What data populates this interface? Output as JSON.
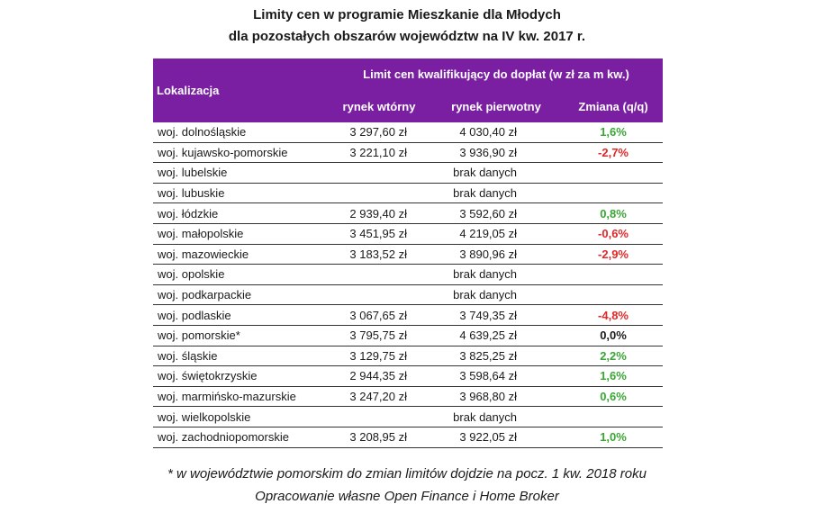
{
  "title": {
    "line1": "Limity cen w programie Mieszkanie dla Młodych",
    "line2": "dla pozostałych obszarów województw na IV kw. 2017 r."
  },
  "table": {
    "header": {
      "location": "Lokalizacja",
      "group": "Limit cen kwalifikujący do dopłat (w zł za m kw.)",
      "secondary": "rynek wtórny",
      "primary": "rynek pierwotny",
      "change": "Zmiana (q/q)"
    },
    "rows": [
      {
        "region": "woj. dolnośląskie",
        "secondary": "3 297,60 zł",
        "primary": "4 030,40 zł",
        "change": "1,6%",
        "trend": "pos"
      },
      {
        "region": "woj. kujawsko-pomorskie",
        "secondary": "3 221,10 zł",
        "primary": "3 936,90 zł",
        "change": "-2,7%",
        "trend": "neg"
      },
      {
        "region": "woj. lubelskie",
        "nodata": "brak danych"
      },
      {
        "region": "woj. lubuskie",
        "nodata": "brak danych"
      },
      {
        "region": "woj. łódzkie",
        "secondary": "2 939,40 zł",
        "primary": "3 592,60 zł",
        "change": "0,8%",
        "trend": "pos"
      },
      {
        "region": "woj. małopolskie",
        "secondary": "3 451,95 zł",
        "primary": "4 219,05 zł",
        "change": "-0,6%",
        "trend": "neg"
      },
      {
        "region": "woj. mazowieckie",
        "secondary": "3 183,52 zł",
        "primary": "3 890,96 zł",
        "change": "-2,9%",
        "trend": "neg"
      },
      {
        "region": "woj. opolskie",
        "nodata": "brak danych"
      },
      {
        "region": "woj. podkarpackie",
        "nodata": "brak danych"
      },
      {
        "region": "woj. podlaskie",
        "secondary": "3 067,65 zł",
        "primary": "3 749,35 zł",
        "change": "-4,8%",
        "trend": "neg"
      },
      {
        "region": "woj. pomorskie*",
        "secondary": "3 795,75 zł",
        "primary": "4 639,25 zł",
        "change": "0,0%",
        "trend": "zero"
      },
      {
        "region": "woj. śląskie",
        "secondary": "3 129,75 zł",
        "primary": "3 825,25 zł",
        "change": "2,2%",
        "trend": "pos"
      },
      {
        "region": "woj. świętokrzyskie",
        "secondary": "2 944,35 zł",
        "primary": "3 598,64 zł",
        "change": "1,6%",
        "trend": "pos"
      },
      {
        "region": "woj. marmińsko-mazurskie",
        "secondary": "3 247,20 zł",
        "primary": "3 968,80 zł",
        "change": "0,6%",
        "trend": "pos"
      },
      {
        "region": "woj. wielkopolskie",
        "nodata": "brak danych"
      },
      {
        "region": "woj. zachodniopomorskie",
        "secondary": "3 208,95 zł",
        "primary": "3 922,05 zł",
        "change": "1,0%",
        "trend": "pos"
      }
    ]
  },
  "notes": {
    "footnote": "* w województwie pomorskim do zmian limitów dojdzie na pocz. 1 kw. 2018 roku",
    "source": "Opracowanie własne Open Finance i Home Broker"
  },
  "colors": {
    "header_bg": "#7a1fa2",
    "positive": "#3aa635",
    "negative": "#e02828"
  }
}
